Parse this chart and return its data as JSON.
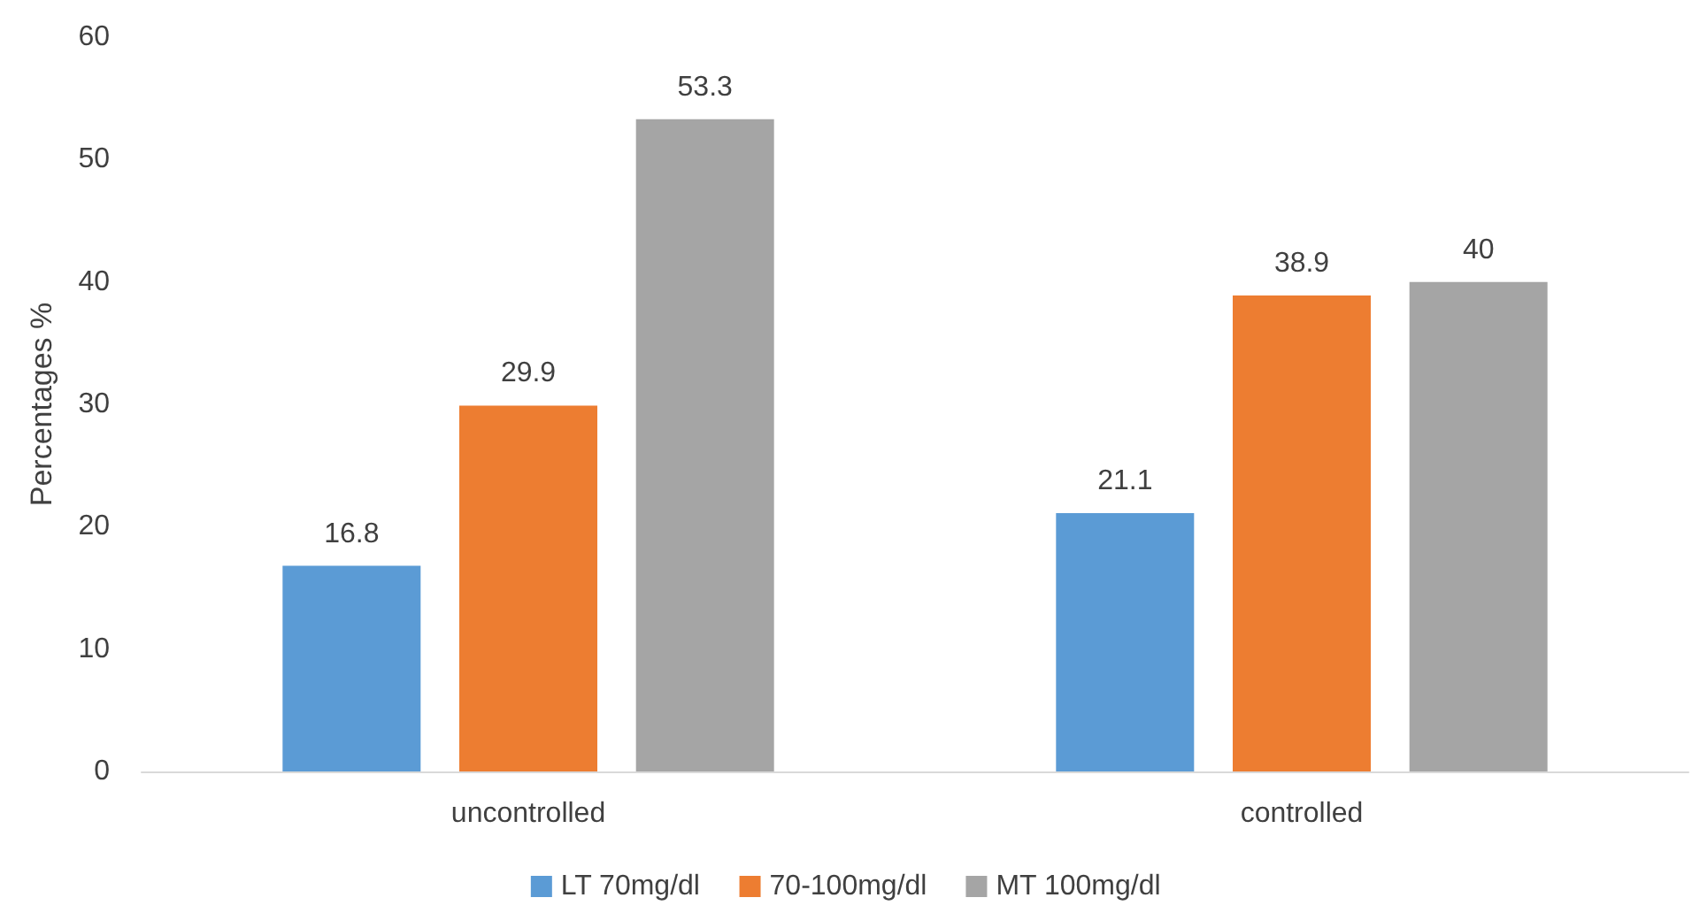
{
  "chart_data": {
    "type": "bar",
    "ylabel": "Percentages %",
    "categories": [
      "uncontrolled",
      "controlled"
    ],
    "series": [
      {
        "name": "LT 70mg/dl",
        "color": "#5b9bd5",
        "values": [
          16.8,
          21.1
        ]
      },
      {
        "name": "70-100mg/dl",
        "color": "#ed7d31",
        "values": [
          29.9,
          38.9
        ]
      },
      {
        "name": "MT 100mg/dl",
        "color": "#a5a5a5",
        "values": [
          53.3,
          40
        ]
      }
    ],
    "ylim": [
      0,
      60
    ],
    "yticks": [
      0,
      10,
      20,
      30,
      40,
      50,
      60
    ],
    "grid": false,
    "legend": "bottom",
    "data_labels": true
  }
}
